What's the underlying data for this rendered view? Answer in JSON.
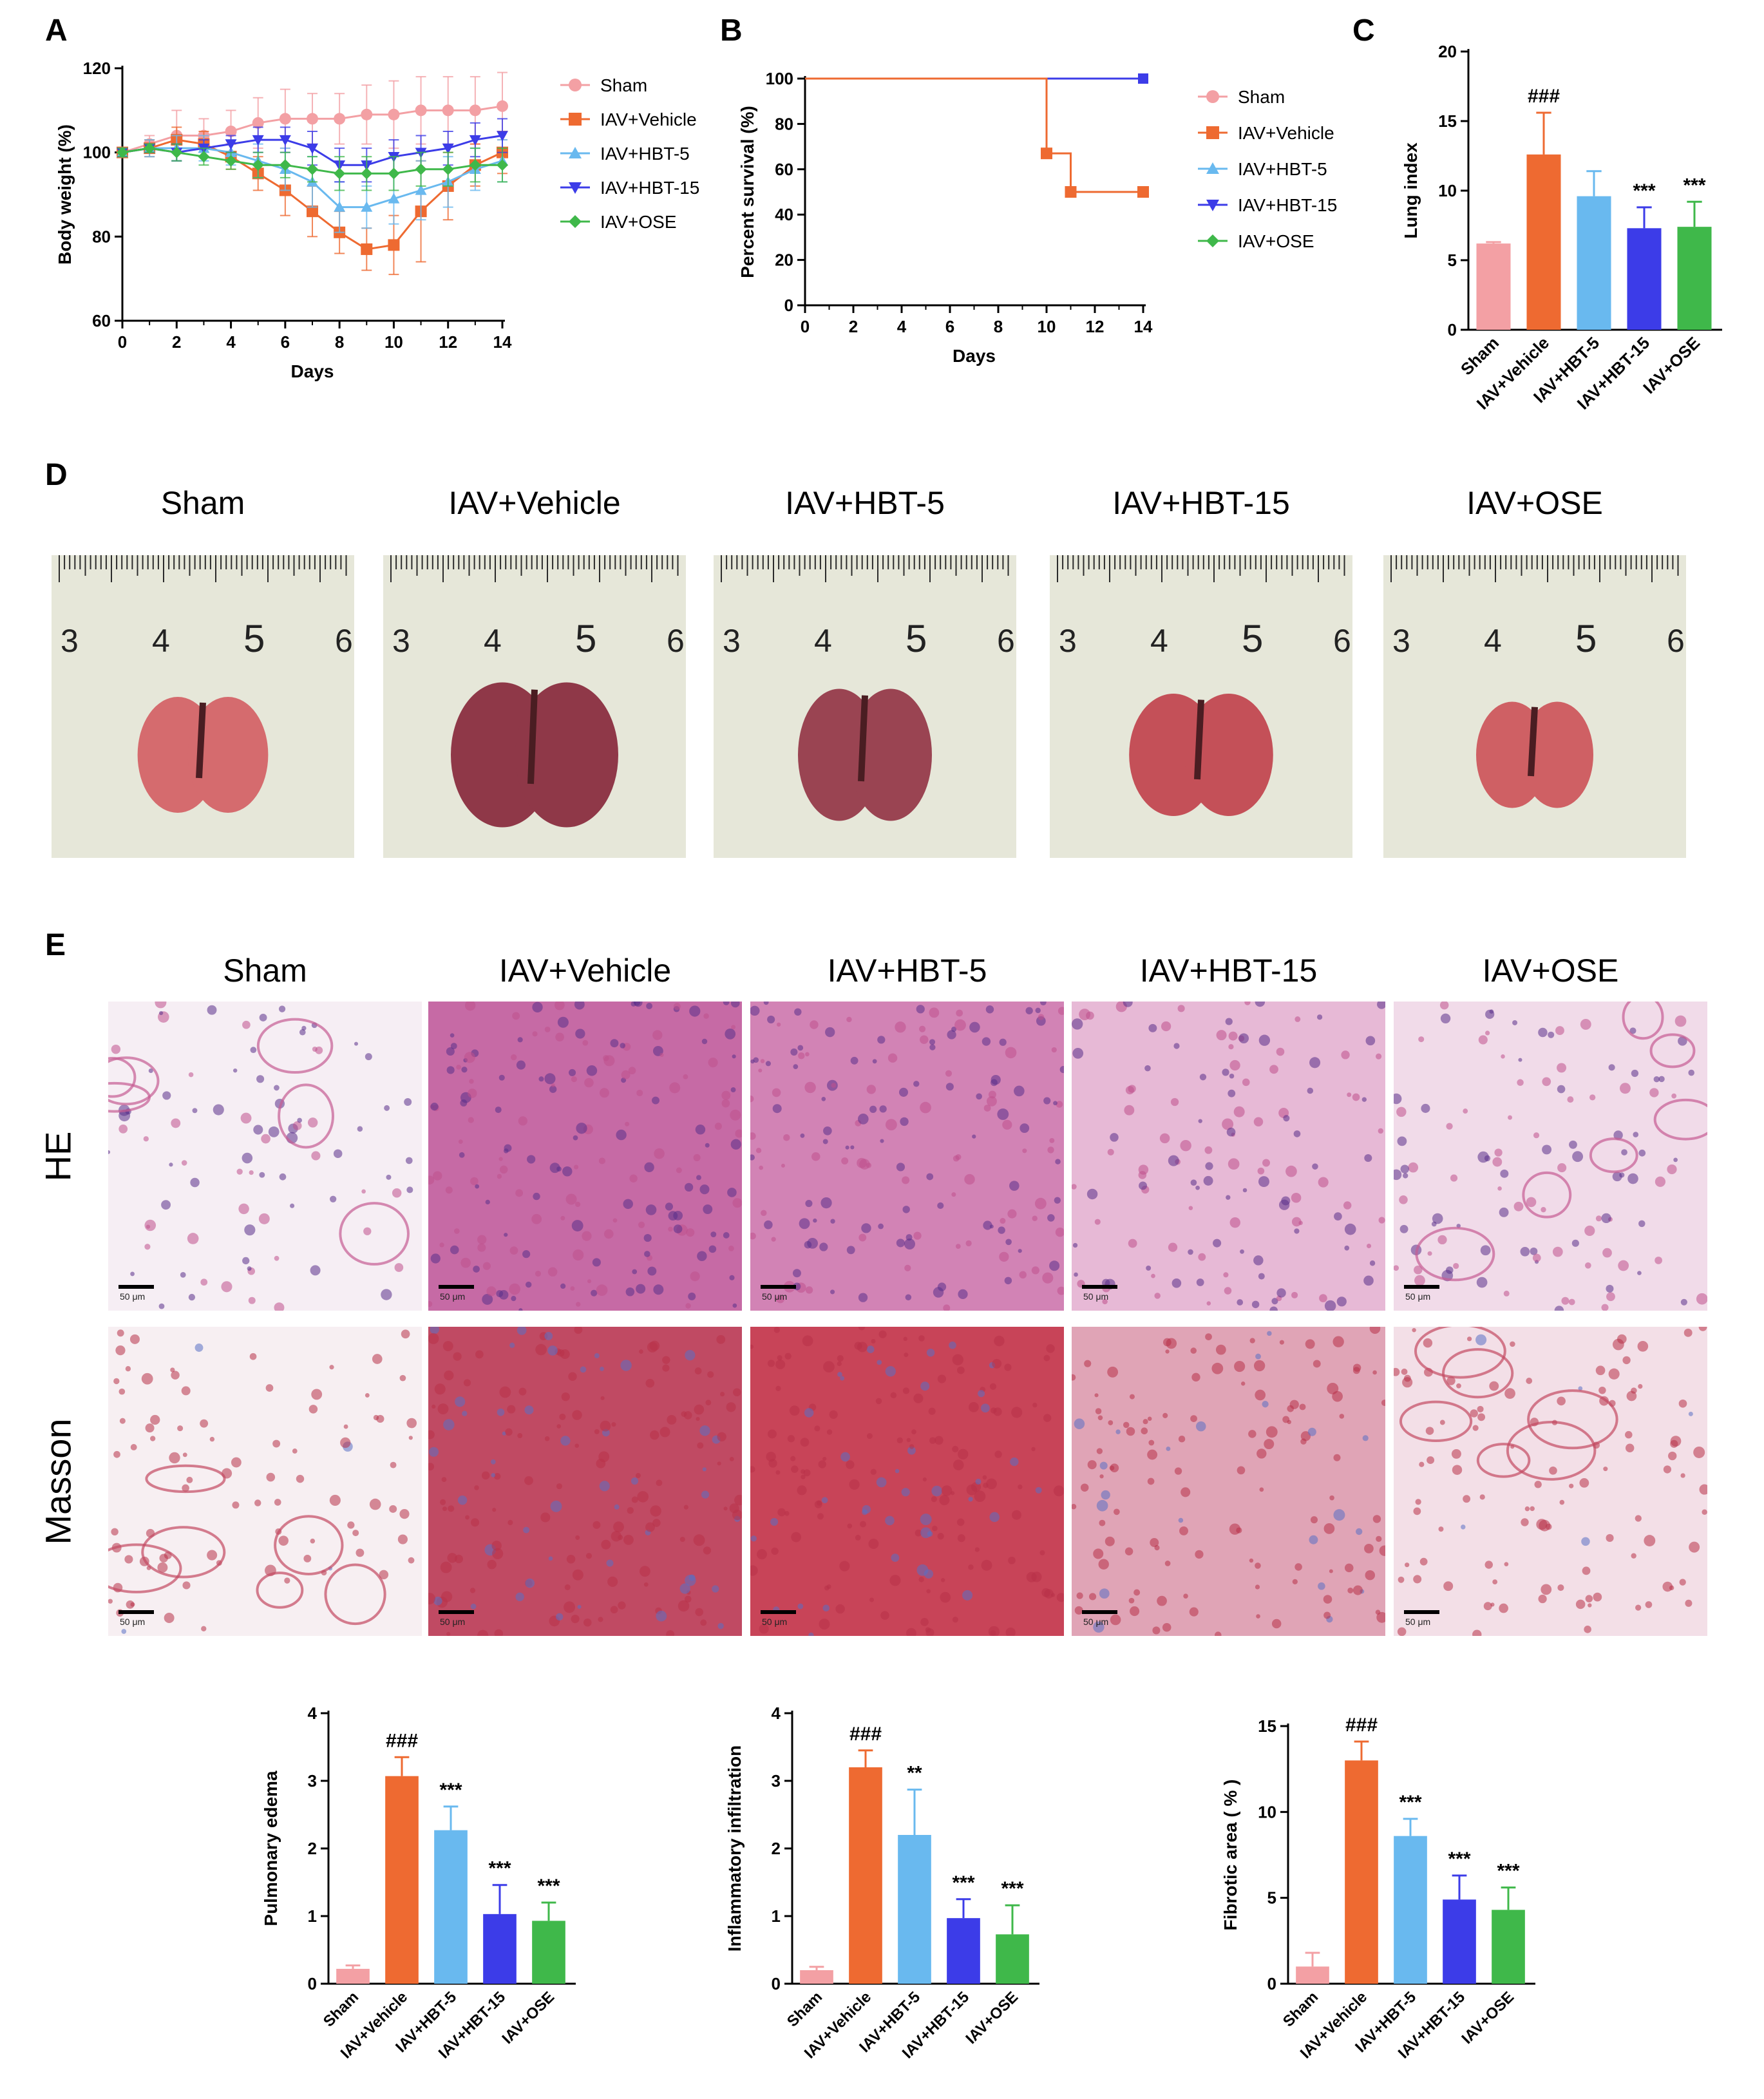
{
  "panels": {
    "a": "A",
    "b": "B",
    "c": "C",
    "d": "D",
    "e": "E"
  },
  "colors": {
    "sham": "#f3a0a4",
    "vehicle": "#ee6a31",
    "hbt5": "#69b9ef",
    "hbt15": "#3c3ce8",
    "ose": "#3fb84a"
  },
  "groups": [
    "Sham",
    "IAV+Vehicle",
    "IAV+HBT-5",
    "IAV+HBT-15",
    "IAV+OSE"
  ],
  "chart_a": {
    "type": "line",
    "xlabel": "Days",
    "ylabel": "Body weight (%)",
    "x_ticks": [
      "0",
      "2",
      "4",
      "6",
      "8",
      "10",
      "12",
      "14"
    ],
    "y_ticks": [
      "60",
      "80",
      "100",
      "120"
    ],
    "xlim": [
      0,
      14
    ],
    "ylim": [
      60,
      120
    ],
    "legend": [
      "Sham",
      "IAV+Vehicle",
      "IAV+HBT-5",
      "IAV+HBT-15",
      "IAV+OSE"
    ]
  },
  "chart_b": {
    "type": "line",
    "xlabel": "Days",
    "ylabel": "Percent survival (%)",
    "x_ticks": [
      "0",
      "2",
      "4",
      "6",
      "8",
      "10",
      "12",
      "14"
    ],
    "y_ticks": [
      "0",
      "20",
      "40",
      "60",
      "80",
      "100"
    ],
    "xlim": [
      0,
      14
    ],
    "ylim": [
      0,
      100
    ],
    "legend": [
      "Sham",
      "IAV+Vehicle",
      "IAV+HBT-5",
      "IAV+HBT-15",
      "IAV+OSE"
    ]
  },
  "chart_c": {
    "type": "bar",
    "ylabel": "Lung index",
    "y_ticks": [
      "0",
      "5",
      "10",
      "15",
      "20"
    ],
    "ylim": [
      0,
      20
    ],
    "annotations": [
      "",
      "###",
      "",
      "***",
      "***"
    ]
  },
  "chart_e1": {
    "type": "bar",
    "ylabel": "Pulmonary  edema",
    "y_ticks": [
      "0",
      "1",
      "2",
      "3",
      "4"
    ],
    "ylim": [
      0,
      4
    ],
    "annotations": [
      "",
      "###",
      "***",
      "***",
      "***"
    ]
  },
  "chart_e2": {
    "type": "bar",
    "ylabel": "Inflammatory infiltration",
    "y_ticks": [
      "0",
      "1",
      "2",
      "3",
      "4"
    ],
    "ylim": [
      0,
      4
    ],
    "annotations": [
      "",
      "###",
      "**",
      "***",
      "***"
    ]
  },
  "chart_e3": {
    "type": "bar",
    "ylabel": "Fibrotic area ( % )",
    "y_ticks": [
      "0",
      "5",
      "10",
      "15"
    ],
    "ylim": [
      0,
      15
    ],
    "annotations": [
      "",
      "###",
      "***",
      "***",
      "***"
    ]
  },
  "photos_d": {
    "titles": [
      "Sham",
      "IAV+Vehicle",
      "IAV+HBT-5",
      "IAV+HBT-15",
      "IAV+OSE"
    ],
    "ruler_numbers": [
      "3",
      "4",
      "5",
      "6"
    ]
  },
  "photos_e": {
    "titles": [
      "Sham",
      "IAV+Vehicle",
      "IAV+HBT-5",
      "IAV+HBT-15",
      "IAV+OSE"
    ],
    "row_labels": [
      "HE",
      "Masson"
    ],
    "scale_label": "50 μm"
  },
  "chart_data": [
    {
      "type": "line",
      "title": "",
      "xlabel": "Days",
      "ylabel": "Body weight (%)",
      "xlim": [
        0,
        14
      ],
      "ylim": [
        60,
        120
      ],
      "x": [
        0,
        1,
        2,
        3,
        4,
        5,
        6,
        7,
        8,
        9,
        10,
        11,
        12,
        13,
        14
      ],
      "series": [
        {
          "name": "Sham",
          "values": [
            100,
            102,
            104,
            104,
            105,
            107,
            108,
            108,
            108,
            109,
            109,
            110,
            110,
            110,
            111
          ],
          "errors": [
            1,
            2,
            6,
            4,
            5,
            6,
            7,
            6,
            6,
            7,
            8,
            8,
            8,
            8,
            8
          ]
        },
        {
          "name": "IAV+Vehicle",
          "values": [
            100,
            101,
            103,
            102,
            99,
            95,
            91,
            86,
            81,
            77,
            78,
            86,
            92,
            97,
            100
          ],
          "errors": [
            1,
            2,
            3,
            3,
            3,
            4,
            6,
            6,
            5,
            5,
            7,
            12,
            8,
            5,
            5
          ]
        },
        {
          "name": "IAV+HBT-5",
          "values": [
            100,
            101,
            101,
            101,
            100,
            98,
            96,
            93,
            87,
            87,
            89,
            91,
            93,
            96,
            98
          ],
          "errors": [
            1,
            2,
            3,
            3,
            3,
            4,
            5,
            6,
            6,
            5,
            6,
            7,
            6,
            5,
            5
          ]
        },
        {
          "name": "IAV+HBT-15",
          "values": [
            100,
            101,
            100,
            101,
            102,
            103,
            103,
            101,
            97,
            97,
            99,
            100,
            101,
            103,
            104
          ],
          "errors": [
            1,
            1,
            2,
            2,
            2,
            3,
            3,
            4,
            4,
            4,
            4,
            4,
            4,
            4,
            4
          ]
        },
        {
          "name": "IAV+OSE",
          "values": [
            100,
            101,
            100,
            99,
            98,
            97,
            97,
            96,
            95,
            95,
            95,
            96,
            96,
            97,
            97
          ],
          "errors": [
            1,
            1,
            2,
            2,
            2,
            3,
            3,
            3,
            4,
            4,
            4,
            4,
            4,
            4,
            4
          ]
        }
      ]
    },
    {
      "type": "line",
      "title": "",
      "xlabel": "Days",
      "ylabel": "Percent survival (%)",
      "xlim": [
        0,
        14
      ],
      "ylim": [
        0,
        100
      ],
      "series": [
        {
          "name": "Sham",
          "x": [
            0,
            14
          ],
          "values": [
            100,
            100
          ]
        },
        {
          "name": "IAV+Vehicle",
          "x": [
            0,
            10,
            10,
            11,
            11,
            14
          ],
          "values": [
            100,
            100,
            67,
            67,
            50,
            50
          ],
          "markers_x": [
            10,
            11,
            14
          ],
          "markers_y": [
            67,
            50,
            50
          ]
        },
        {
          "name": "IAV+HBT-5",
          "x": [
            0,
            14
          ],
          "values": [
            100,
            100
          ]
        },
        {
          "name": "IAV+HBT-15",
          "x": [
            0,
            14
          ],
          "values": [
            100,
            100
          ]
        },
        {
          "name": "IAV+OSE",
          "x": [
            0,
            14
          ],
          "values": [
            100,
            100
          ]
        }
      ]
    },
    {
      "type": "bar",
      "title": "",
      "ylabel": "Lung index",
      "ylim": [
        0,
        20
      ],
      "categories": [
        "Sham",
        "IAV+Vehicle",
        "IAV+HBT-5",
        "IAV+HBT-15",
        "IAV+OSE"
      ],
      "values": [
        6.2,
        12.6,
        9.6,
        7.3,
        7.4
      ],
      "errors": [
        0.1,
        3.0,
        1.8,
        1.5,
        1.8
      ]
    },
    {
      "type": "bar",
      "title": "",
      "ylabel": "Pulmonary  edema",
      "ylim": [
        0,
        4
      ],
      "categories": [
        "Sham",
        "IAV+Vehicle",
        "IAV+HBT-5",
        "IAV+HBT-15",
        "IAV+OSE"
      ],
      "values": [
        0.22,
        3.07,
        2.27,
        1.03,
        0.93
      ],
      "errors": [
        0.05,
        0.28,
        0.35,
        0.43,
        0.27
      ]
    },
    {
      "type": "bar",
      "title": "",
      "ylabel": "Inflammatory infiltration",
      "ylim": [
        0,
        4
      ],
      "categories": [
        "Sham",
        "IAV+Vehicle",
        "IAV+HBT-5",
        "IAV+HBT-15",
        "IAV+OSE"
      ],
      "values": [
        0.2,
        3.2,
        2.2,
        0.97,
        0.73
      ],
      "errors": [
        0.05,
        0.25,
        0.67,
        0.28,
        0.43
      ]
    },
    {
      "type": "bar",
      "title": "",
      "ylabel": "Fibrotic area ( % )",
      "ylim": [
        0,
        15
      ],
      "categories": [
        "Sham",
        "IAV+Vehicle",
        "IAV+HBT-5",
        "IAV+HBT-15",
        "IAV+OSE"
      ],
      "values": [
        1.0,
        13.0,
        8.6,
        4.9,
        4.3
      ],
      "errors": [
        0.8,
        1.1,
        1.0,
        1.4,
        1.3
      ]
    }
  ]
}
